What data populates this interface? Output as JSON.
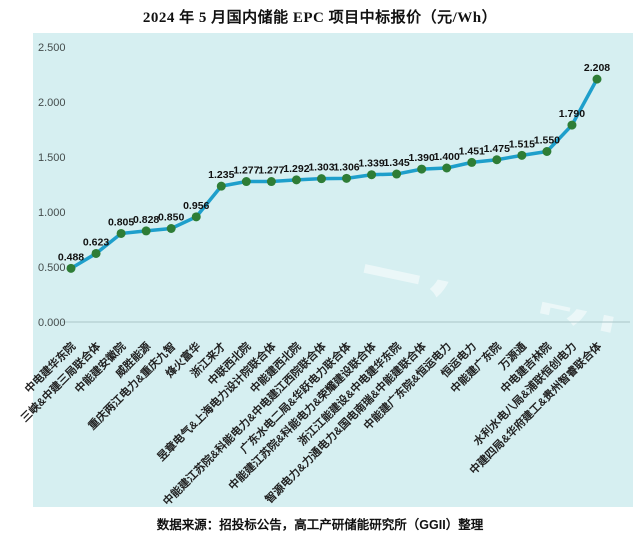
{
  "title": "2024 年 5 月国内储能 EPC 项目中标报价（元/Wh）",
  "source_note": "数据来源：招投标公告，高工产研储能研究所（GGII）整理",
  "watermark_text": "高工产研",
  "colors": {
    "panel_background": "#d6eff1",
    "line": "#1e9fcb",
    "marker": "#2e7d36",
    "value_label": "#111111",
    "axis_text": "#444c4c",
    "tick_label": "#222222",
    "axis_line": "#a9c6c8",
    "watermark": "#ffffff"
  },
  "chart_data": {
    "type": "line",
    "title": "2024 年 5 月国内储能 EPC 项目中标报价（元/Wh）",
    "unit": "元/Wh",
    "xlabel": "",
    "ylabel": "",
    "ylim": [
      0,
      2.5
    ],
    "yticks": [
      "0.000",
      "0.500",
      "1.000",
      "1.500",
      "2.000",
      "2.500"
    ],
    "grid": false,
    "legend": "none",
    "categories": [
      "中电建华东院",
      "三峡&中建三局联合体",
      "中能建安徽院",
      "威胜能源",
      "重庆两江电力&重庆九智",
      "烽火富华",
      "浙江来才",
      "中联西北院",
      "昱章电气&上海电力设计院联合体",
      "中能建西北院",
      "中能建江苏院&科能电力&中电建江西院联合体",
      "广东水电二局&华跃电力联合体",
      "中能建江苏院&科能电力&荣耀建设联合体",
      "浙江江能建设&中电建华东院",
      "智源电力&力通电力&国电南瑞&中能建联合体",
      "中能建广东院&恒运电力",
      "恒运电力",
      "中能建广东院",
      "万源通",
      "中电建吉林院",
      "水利水电八局&浦联恒创电力",
      "中建四局&华府建工&贵州智睿联合体"
    ],
    "series": [
      {
        "name": "中标报价",
        "values": [
          0.488,
          0.623,
          0.805,
          0.828,
          0.85,
          0.956,
          1.235,
          1.277,
          1.277,
          1.292,
          1.303,
          1.306,
          1.339,
          1.345,
          1.39,
          1.4,
          1.451,
          1.475,
          1.515,
          1.55,
          1.79,
          2.208
        ]
      }
    ]
  }
}
